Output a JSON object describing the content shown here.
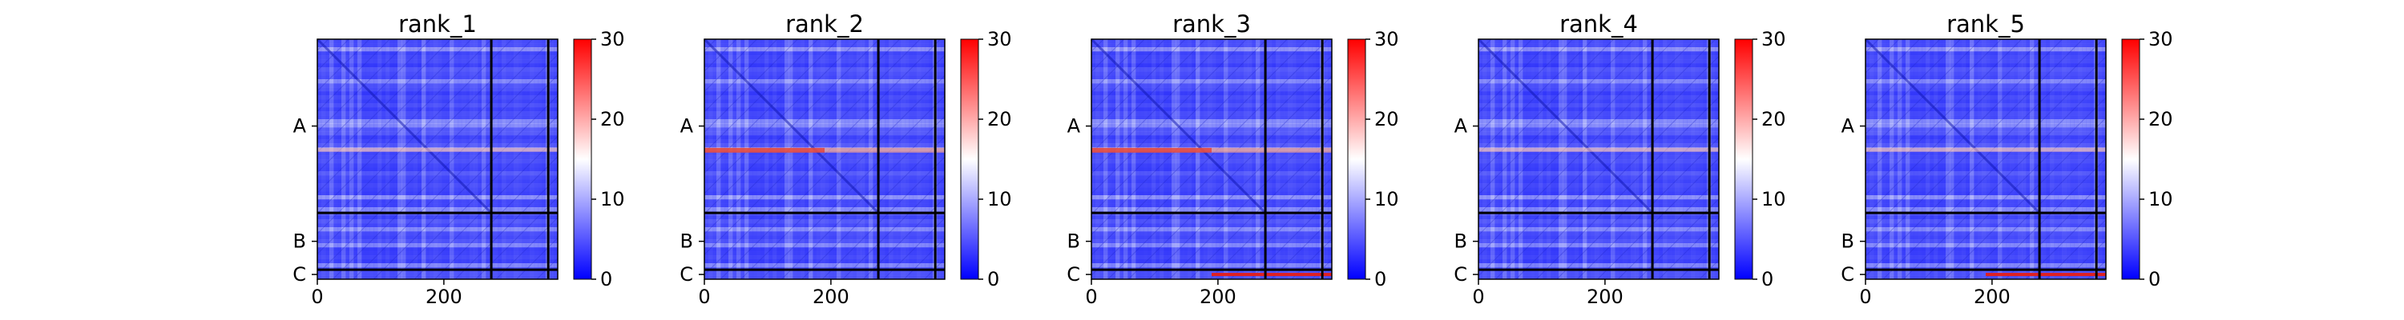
{
  "chart_data": [
    {
      "type": "heatmap",
      "title": "rank_1",
      "xticks": [
        0,
        200
      ],
      "xlim": [
        0,
        380
      ],
      "chain_labels": [
        "A",
        "B",
        "C"
      ],
      "chain_boundaries": [
        275,
        365
      ],
      "colorbar": {
        "ticks": [
          0,
          10,
          20,
          30
        ],
        "range": [
          0,
          30
        ],
        "colormap": "bwr"
      },
      "hot_band": null
    },
    {
      "type": "heatmap",
      "title": "rank_2",
      "xticks": [
        0,
        200
      ],
      "xlim": [
        0,
        380
      ],
      "chain_labels": [
        "A",
        "B",
        "C"
      ],
      "chain_boundaries": [
        275,
        365
      ],
      "colorbar": {
        "ticks": [
          0,
          10,
          20,
          30
        ],
        "range": [
          0,
          30
        ],
        "colormap": "bwr"
      },
      "hot_band": "row"
    },
    {
      "type": "heatmap",
      "title": "rank_3",
      "xticks": [
        0,
        200
      ],
      "xlim": [
        0,
        380
      ],
      "chain_labels": [
        "A",
        "B",
        "C"
      ],
      "chain_boundaries": [
        275,
        365
      ],
      "colorbar": {
        "ticks": [
          0,
          10,
          20,
          30
        ],
        "range": [
          0,
          30
        ],
        "colormap": "bwr"
      },
      "hot_band": "row+bottom"
    },
    {
      "type": "heatmap",
      "title": "rank_4",
      "xticks": [
        0,
        200
      ],
      "xlim": [
        0,
        380
      ],
      "chain_labels": [
        "A",
        "B",
        "C"
      ],
      "chain_boundaries": [
        275,
        365
      ],
      "colorbar": {
        "ticks": [
          0,
          10,
          20,
          30
        ],
        "range": [
          0,
          30
        ],
        "colormap": "bwr"
      },
      "hot_band": null
    },
    {
      "type": "heatmap",
      "title": "rank_5",
      "xticks": [
        0,
        200
      ],
      "xlim": [
        0,
        380
      ],
      "chain_labels": [
        "A",
        "B",
        "C"
      ],
      "chain_boundaries": [
        275,
        365
      ],
      "colorbar": {
        "ticks": [
          0,
          10,
          20,
          30
        ],
        "range": [
          0,
          30
        ],
        "colormap": "bwr"
      },
      "hot_band": "bottom"
    }
  ]
}
